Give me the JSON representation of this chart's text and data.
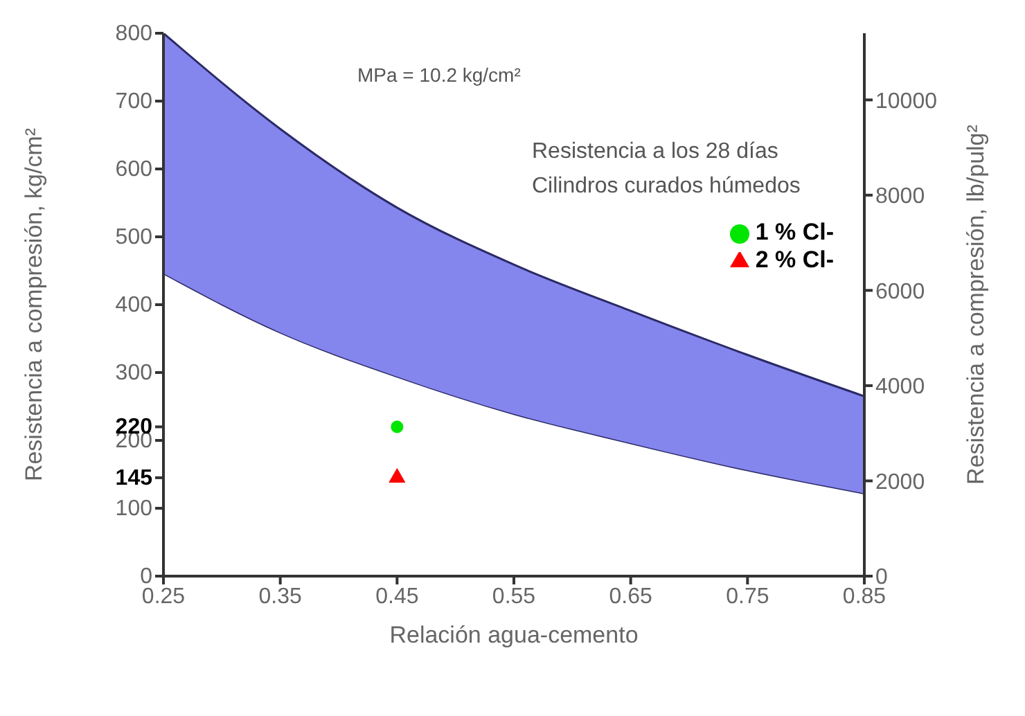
{
  "chart_data": {
    "type": "area",
    "xlabel": "Relación agua-cemento",
    "ylabel": "Resistencia a compresión, kg/cm²",
    "y2label": "Resistencia a compresión, lb/pulg²",
    "annotations": [
      "MPa = 10.2 kg/cm²",
      "Resistencia a los 28 días",
      "Cilindros curados húmedos"
    ],
    "series": [
      {
        "color": "#ffffff",
        "x": [
          0.25,
          0.35,
          0.45,
          0.55,
          0.65,
          0.75,
          0.85
        ],
        "values": [
          446,
          359,
          294,
          239,
          196,
          156,
          122
        ]
      },
      {
        "color": "#8585ee",
        "x": [
          0.25,
          0.35,
          0.45,
          0.55,
          0.65,
          0.75,
          0.85
        ],
        "values": [
          354,
          300,
          249,
          220,
          195,
          170,
          143
        ]
      },
      {
        "type": "scatter",
        "name": "1 % Cl-",
        "color": "#00e600",
        "marker": "circle",
        "x": [
          0.45
        ],
        "values": [
          220
        ]
      },
      {
        "type": "scatter",
        "name": "2 % Cl-",
        "color": "#ff0000",
        "marker": "triangle",
        "x": [
          0.45
        ],
        "values": [
          145
        ]
      }
    ],
    "xlim": [
      0.25,
      0.85
    ],
    "xticks": [
      0.25,
      0.35,
      0.45,
      0.55,
      0.65,
      0.75,
      0.85
    ],
    "ylim": [
      0,
      800
    ],
    "yticks": [
      0,
      100,
      145,
      200,
      220,
      300,
      400,
      500,
      600,
      700,
      800
    ],
    "y2lim": [
      0,
      11400
    ],
    "y2ticks": [
      0,
      2000,
      4000,
      6000,
      8000,
      10000
    ],
    "stacked": true,
    "legend": "top right"
  }
}
